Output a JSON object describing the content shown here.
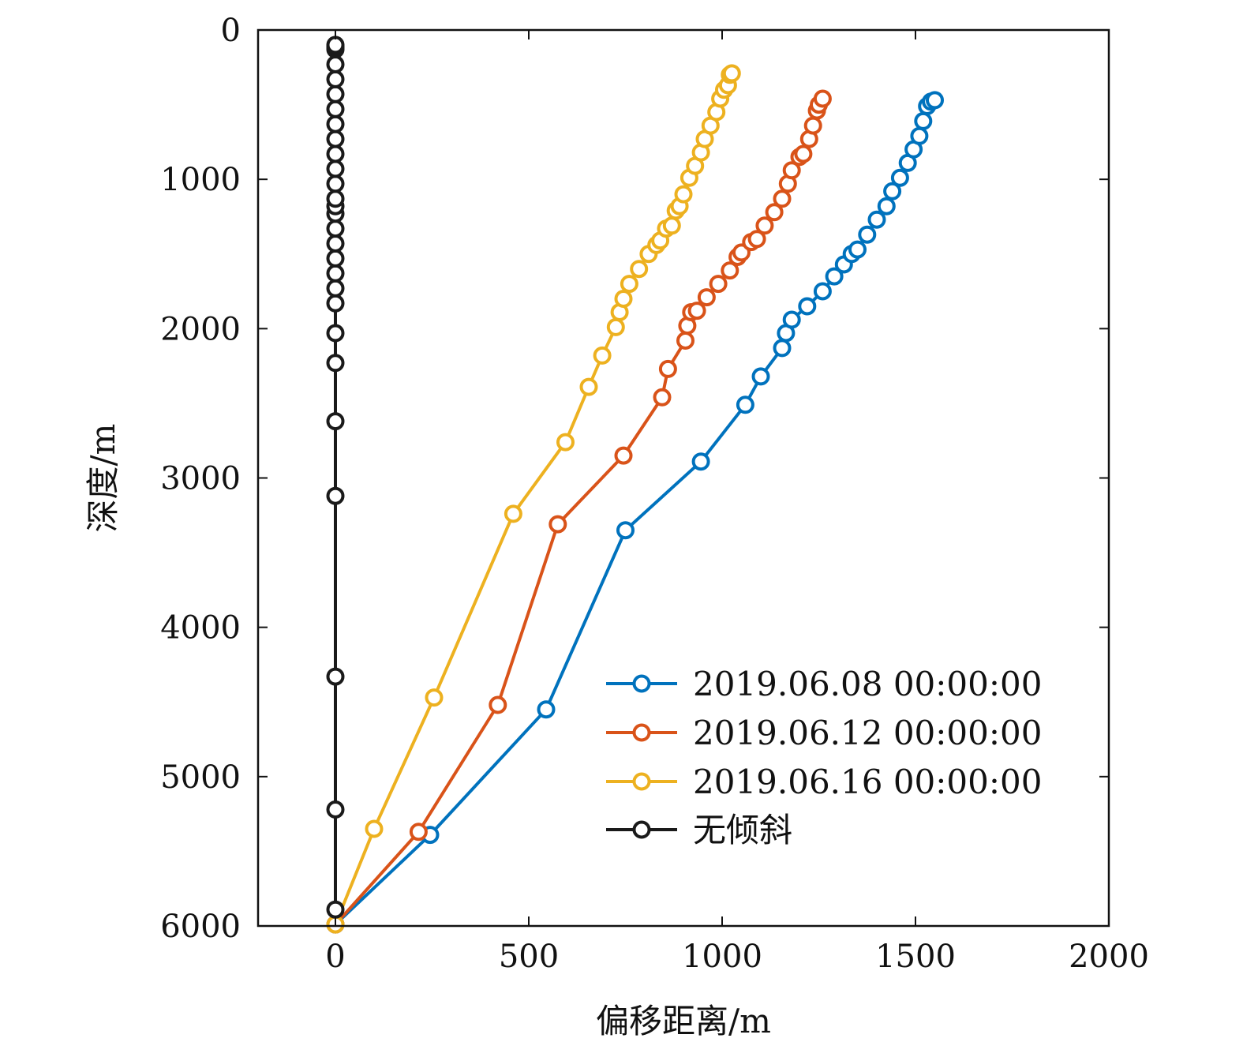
{
  "chart_data": {
    "type": "line",
    "title": "",
    "xlabel": "偏移距离/m",
    "ylabel": "深度/m",
    "xlim": [
      -200,
      2000
    ],
    "ylim": [
      6000,
      0
    ],
    "x_inverted": false,
    "y_inverted": true,
    "xticks": [
      0,
      500,
      1000,
      1500,
      2000
    ],
    "yticks": [
      0,
      1000,
      2000,
      3000,
      4000,
      5000,
      6000
    ],
    "grid": false,
    "legend_position": "bottom-right",
    "series": [
      {
        "name": "2019.06.08 00:00:00",
        "color": "#0072BD",
        "x": [
          0,
          245,
          545,
          750,
          945,
          1060,
          1100,
          1155,
          1165,
          1180,
          1220,
          1260,
          1290,
          1315,
          1335,
          1350,
          1375,
          1400,
          1425,
          1440,
          1460,
          1480,
          1495,
          1510,
          1520,
          1530,
          1540,
          1550
        ],
        "y": [
          5990,
          5390,
          4550,
          3350,
          2890,
          2510,
          2320,
          2130,
          2030,
          1940,
          1850,
          1750,
          1650,
          1570,
          1500,
          1470,
          1370,
          1270,
          1180,
          1080,
          990,
          890,
          800,
          710,
          610,
          510,
          480,
          470
        ]
      },
      {
        "name": "2019.06.12 00:00:00",
        "color": "#D95319",
        "x": [
          0,
          215,
          420,
          575,
          745,
          845,
          860,
          905,
          910,
          920,
          935,
          960,
          990,
          1020,
          1040,
          1050,
          1075,
          1090,
          1110,
          1135,
          1155,
          1170,
          1180,
          1200,
          1210,
          1225,
          1235,
          1245,
          1250,
          1260
        ],
        "y": [
          5990,
          5370,
          4520,
          3310,
          2850,
          2460,
          2270,
          2080,
          1980,
          1890,
          1880,
          1790,
          1700,
          1610,
          1520,
          1490,
          1420,
          1400,
          1310,
          1220,
          1130,
          1030,
          940,
          850,
          830,
          730,
          640,
          540,
          500,
          460
        ]
      },
      {
        "name": "2019.06.16 00:00:00",
        "color": "#EDB120",
        "x": [
          0,
          100,
          255,
          460,
          595,
          655,
          690,
          725,
          735,
          745,
          760,
          785,
          810,
          830,
          840,
          855,
          870,
          880,
          890,
          900,
          915,
          930,
          945,
          955,
          970,
          985,
          995,
          1005,
          1015,
          1020,
          1025
        ],
        "y": [
          5990,
          5350,
          4470,
          3240,
          2760,
          2390,
          2180,
          1990,
          1890,
          1800,
          1700,
          1600,
          1500,
          1440,
          1410,
          1330,
          1310,
          1210,
          1180,
          1100,
          990,
          910,
          820,
          730,
          640,
          550,
          460,
          400,
          370,
          300,
          290
        ]
      },
      {
        "name": "无倾斜",
        "color": "#1A1A1A",
        "x": [
          0,
          0,
          0,
          0,
          0,
          0,
          0,
          0,
          0,
          0,
          0,
          0,
          0,
          0,
          0,
          0,
          0,
          0,
          0,
          0,
          0,
          0,
          0,
          0,
          0,
          0,
          0,
          0,
          0
        ],
        "y": [
          5890,
          5220,
          4330,
          3120,
          2620,
          2230,
          2030,
          1830,
          1730,
          1630,
          1530,
          1430,
          1330,
          1230,
          1180,
          1130,
          1030,
          930,
          830,
          730,
          630,
          530,
          430,
          330,
          230,
          130,
          120,
          110,
          100
        ]
      }
    ]
  }
}
